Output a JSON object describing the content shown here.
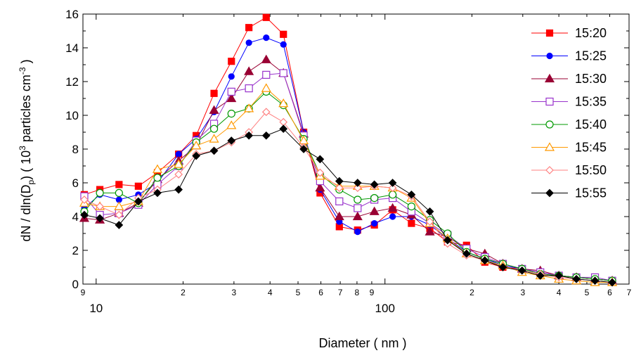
{
  "chart_data": {
    "type": "line",
    "xlabel": "Diameter ( nm )",
    "ylabel_parts": [
      "dN / dln(D",
      "p",
      ")  ( 10",
      "3",
      " particles cm",
      "-3",
      " )"
    ],
    "x_scale": "log",
    "xlim": [
      9,
      700
    ],
    "ylim": [
      0,
      16
    ],
    "y_ticks": [
      "0",
      "2",
      "4",
      "6",
      "8",
      "10",
      "12",
      "14",
      "16"
    ],
    "x_major_ticks": [
      {
        "v": 10,
        "label": "10"
      },
      {
        "v": 100,
        "label": "100"
      }
    ],
    "x_minor_ticks": [
      {
        "v": 9,
        "label": "9"
      },
      {
        "v": 20,
        "label": "2"
      },
      {
        "v": 30,
        "label": "3"
      },
      {
        "v": 40,
        "label": "4"
      },
      {
        "v": 50,
        "label": "5"
      },
      {
        "v": 60,
        "label": "6"
      },
      {
        "v": 70,
        "label": "7"
      },
      {
        "v": 80,
        "label": "8"
      },
      {
        "v": 90,
        "label": "9"
      },
      {
        "v": 200,
        "label": "2"
      },
      {
        "v": 300,
        "label": "3"
      },
      {
        "v": 400,
        "label": "4"
      },
      {
        "v": 500,
        "label": "5"
      },
      {
        "v": 600,
        "label": "6"
      },
      {
        "v": 700,
        "label": "7"
      }
    ],
    "legend_position": "top-right",
    "grid": false,
    "x": [
      9.1,
      10.3,
      12.0,
      14.0,
      16.3,
      19.3,
      22.2,
      25.6,
      29.4,
      33.8,
      38.8,
      44.5,
      52.3,
      59.6,
      69.5,
      80.4,
      91.9,
      106.3,
      123.5,
      143.0,
      164.7,
      191.6,
      221.7,
      256.0,
      298.3,
      345.0,
      400.0,
      460.0,
      533.5,
      612.0
    ],
    "series": [
      {
        "name": "15:20",
        "color": "#ff0000",
        "marker": "square-filled",
        "values": [
          5.3,
          5.6,
          5.9,
          5.8,
          6.6,
          7.7,
          8.8,
          11.3,
          13.2,
          15.2,
          15.8,
          14.8,
          9.0,
          5.4,
          3.4,
          3.2,
          3.5,
          4.4,
          3.6,
          3.3,
          2.5,
          2.3,
          1.3,
          1.0,
          0.9,
          0.7,
          0.5,
          0.4,
          0.3,
          0.2
        ]
      },
      {
        "name": "15:25",
        "color": "#0000ff",
        "marker": "circle-filled",
        "values": [
          4.5,
          5.3,
          5.0,
          5.3,
          6.0,
          7.7,
          8.6,
          10.2,
          12.3,
          14.3,
          14.6,
          14.2,
          9.0,
          5.6,
          3.7,
          3.1,
          3.6,
          4.0,
          4.0,
          3.5,
          2.7,
          1.9,
          1.5,
          1.1,
          0.9,
          0.7,
          0.5,
          0.4,
          0.3,
          0.2
        ]
      },
      {
        "name": "15:30",
        "color": "#990033",
        "marker": "triangle-filled",
        "values": [
          3.9,
          3.8,
          4.2,
          4.8,
          6.2,
          7.3,
          8.2,
          10.3,
          11.0,
          12.6,
          13.3,
          12.5,
          8.9,
          5.7,
          4.0,
          4.0,
          4.3,
          4.5,
          4.1,
          3.1,
          2.8,
          2.1,
          1.8,
          1.2,
          0.9,
          0.8,
          0.5,
          0.4,
          0.3,
          0.2
        ]
      },
      {
        "name": "15:35",
        "color": "#9933cc",
        "marker": "square-open",
        "values": [
          5.2,
          4.1,
          4.2,
          4.7,
          5.9,
          7.0,
          8.5,
          9.5,
          11.4,
          11.6,
          12.4,
          12.5,
          8.8,
          6.1,
          4.9,
          4.5,
          5.0,
          5.1,
          4.3,
          3.6,
          2.9,
          2.1,
          1.6,
          1.2,
          0.9,
          0.7,
          0.5,
          0.4,
          0.4,
          0.2
        ]
      },
      {
        "name": "15:40",
        "color": "#009900",
        "marker": "circle-open",
        "values": [
          4.3,
          5.4,
          5.4,
          4.8,
          6.3,
          7.0,
          8.4,
          9.2,
          10.1,
          10.4,
          11.4,
          10.6,
          8.6,
          6.5,
          5.6,
          5.0,
          5.1,
          5.3,
          4.6,
          3.8,
          3.0,
          1.9,
          1.5,
          1.2,
          0.9,
          0.6,
          0.5,
          0.4,
          0.3,
          0.2
        ]
      },
      {
        "name": "15:45",
        "color": "#ff9900",
        "marker": "triangle-open",
        "values": [
          4.8,
          4.6,
          4.6,
          4.9,
          6.8,
          7.1,
          8.2,
          8.6,
          9.4,
          10.4,
          11.6,
          10.7,
          8.5,
          6.4,
          5.8,
          5.8,
          5.8,
          5.7,
          5.1,
          3.6,
          2.7,
          1.8,
          1.4,
          1.1,
          0.7,
          0.5,
          0.3,
          0.2,
          0.1,
          0.1
        ]
      },
      {
        "name": "15:50",
        "color": "#ff8080",
        "marker": "diamond-open",
        "values": [
          5.0,
          4.6,
          4.1,
          5.1,
          5.6,
          6.5,
          7.7,
          7.9,
          8.4,
          9.0,
          10.2,
          9.6,
          8.1,
          6.6,
          5.7,
          5.7,
          5.8,
          5.7,
          5.2,
          3.7,
          2.4,
          1.7,
          1.4,
          1.0,
          0.8,
          0.6,
          0.4,
          0.3,
          0.2,
          0.1
        ]
      },
      {
        "name": "15:55",
        "color": "#000000",
        "marker": "diamond-filled",
        "values": [
          4.1,
          3.9,
          3.5,
          4.9,
          5.4,
          5.6,
          7.6,
          7.9,
          8.5,
          8.8,
          8.8,
          9.2,
          8.0,
          7.4,
          6.1,
          6.0,
          5.9,
          6.0,
          5.3,
          4.3,
          2.6,
          1.8,
          1.4,
          1.0,
          0.8,
          0.5,
          0.5,
          0.3,
          0.2,
          0.1
        ]
      }
    ]
  }
}
